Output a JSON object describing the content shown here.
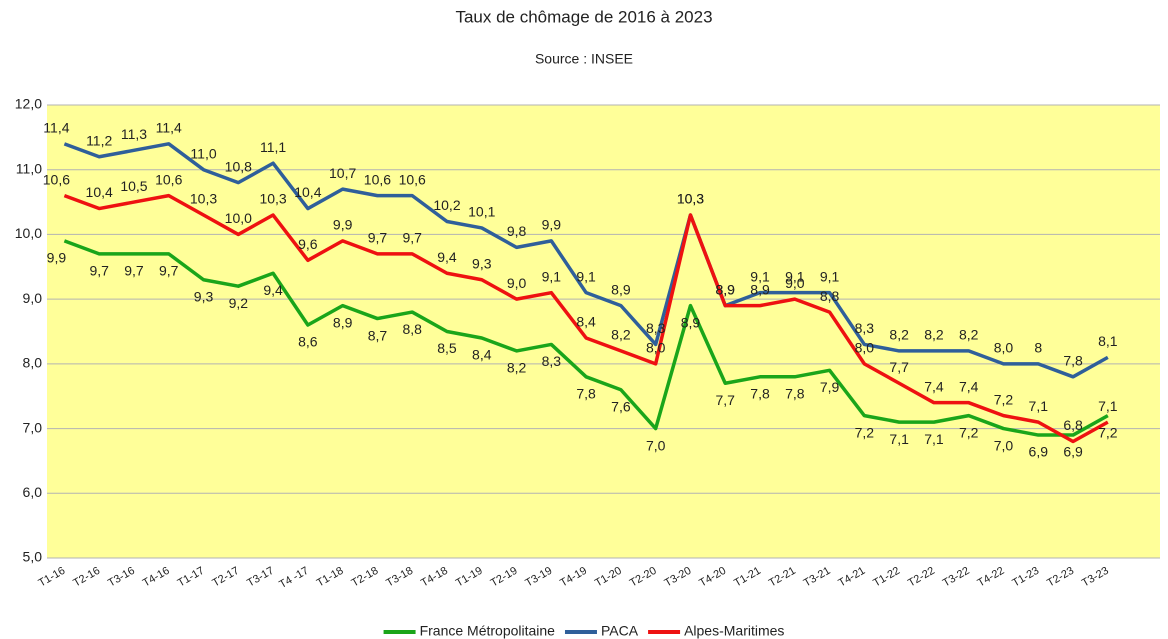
{
  "chart_data": {
    "type": "line",
    "title": "Taux de chômage de 2016 à 2023",
    "subtitle": "Source : INSEE",
    "categories": [
      "T1-16",
      "T2-16",
      "T3-16",
      "T4-16",
      "T1-17",
      "T2-17",
      "T3-17",
      "T4 -17",
      "T1-18",
      "T2-18",
      "T3-18",
      "T4-18",
      "T1-19",
      "T2-19",
      "T3-19",
      "T4-19",
      "T1-20",
      "T2-20",
      "T3-20",
      "T4-20",
      "T1-21",
      "T2-21",
      "T3-21",
      "T4-21",
      "T1-22",
      "T2-22",
      "T3-22",
      "T4-22",
      "T1-23",
      "T2-23",
      "T3-23",
      null
    ],
    "series": [
      {
        "name": "France Métropolitaine",
        "color": "#1aa51a",
        "values": [
          9.9,
          9.7,
          9.7,
          9.7,
          9.3,
          9.2,
          9.4,
          8.6,
          8.9,
          8.7,
          8.8,
          8.5,
          8.4,
          8.2,
          8.3,
          7.8,
          7.6,
          7.0,
          8.9,
          7.7,
          7.8,
          7.8,
          7.9,
          7.2,
          7.1,
          7.1,
          7.2,
          7.0,
          6.9,
          6.9,
          7.2,
          null
        ],
        "value_labels": [
          "9,9",
          "9,7",
          "9,7",
          "9,7",
          "9,3",
          "9,2",
          "9,4",
          "8,6",
          "8,9",
          "8,7",
          "8,8",
          "8,5",
          "8,4",
          "8,2",
          "8,3",
          "7,8",
          "7,6",
          "7,0",
          "8,9",
          "7,7",
          "7,8",
          "7,8",
          "7,9",
          "7,2",
          "7,1",
          "7,1",
          "7,2",
          "7,0",
          "6,9",
          "6,9",
          "7,2",
          null
        ]
      },
      {
        "name": "PACA",
        "color": "#2f5f9a",
        "values": [
          11.4,
          11.2,
          11.3,
          11.4,
          11.0,
          10.8,
          11.1,
          10.4,
          10.7,
          10.6,
          10.6,
          10.2,
          10.1,
          9.8,
          9.9,
          9.1,
          8.9,
          8.3,
          10.3,
          8.9,
          9.1,
          9.1,
          9.1,
          8.3,
          8.2,
          8.2,
          8.2,
          8.0,
          8,
          7.8,
          8.1,
          null
        ],
        "value_labels": [
          "11,4",
          "11,2",
          "11,3",
          "11,4",
          "11,0",
          "10,8",
          "11,1",
          "10,4",
          "10,7",
          "10,6",
          "10,6",
          "10,2",
          "10,1",
          "9,8",
          "9,9",
          "9,1",
          "8,9",
          "8,3",
          "10,3",
          "8,9",
          "9,1",
          "9,1",
          "9,1",
          "8,3",
          "8,2",
          "8,2",
          "8,2",
          "8,0",
          "8",
          "7,8",
          "8,1",
          null
        ]
      },
      {
        "name": "Alpes-Maritimes",
        "color": "#ee1111",
        "values": [
          10.6,
          10.4,
          10.5,
          10.6,
          10.3,
          10.0,
          10.3,
          9.6,
          9.9,
          9.7,
          9.7,
          9.4,
          9.3,
          9.0,
          9.1,
          8.4,
          8.2,
          8.0,
          10.3,
          8.9,
          8.9,
          9.0,
          8.8,
          8.0,
          7.7,
          7.4,
          7.4,
          7.2,
          7.1,
          6.8,
          7.1,
          null
        ],
        "value_labels": [
          "10,6",
          "10,4",
          "10,5",
          "10,6",
          "10,3",
          "10,0",
          "10,3",
          "9,6",
          "9,9",
          "9,7",
          "9,7",
          "9,4",
          "9,3",
          "9,0",
          "9,1",
          "8,4",
          "8,2",
          "8,0",
          "10,3",
          "8,9",
          "8,9",
          "9,0",
          "8,8",
          "8,0",
          "7,7",
          "7,4",
          "7,4",
          "7,2",
          "7,1",
          "6,8",
          "7,1",
          null
        ]
      }
    ],
    "ylim": [
      5,
      12
    ],
    "yticks": [
      {
        "value": 5,
        "label": "5,0"
      },
      {
        "value": 6,
        "label": "6,0"
      },
      {
        "value": 7,
        "label": "7,0"
      },
      {
        "value": 8,
        "label": "8,0"
      },
      {
        "value": 9,
        "label": "9,0"
      },
      {
        "value": 10,
        "label": "10,0"
      },
      {
        "value": 11,
        "label": "11,0"
      },
      {
        "value": 12,
        "label": "12,0"
      }
    ],
    "grid": true,
    "legend": "bottom",
    "background": "#ffff99"
  }
}
